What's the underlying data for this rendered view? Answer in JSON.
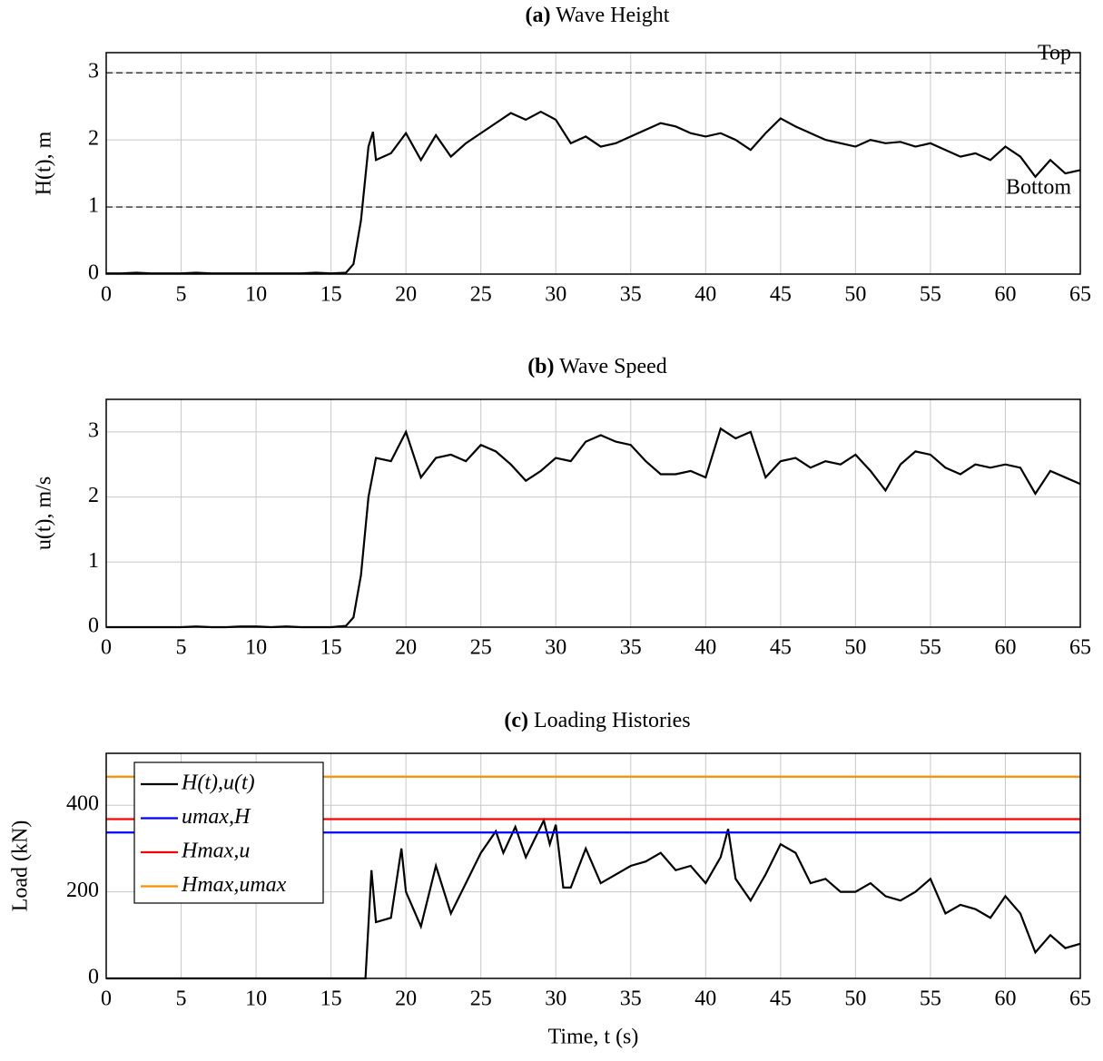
{
  "chart_data": [
    {
      "type": "line",
      "title_tag": "(a)",
      "title": "Wave Height",
      "y_label": "H(t), m",
      "xlim": [
        0,
        65
      ],
      "xticks": [
        0,
        5,
        10,
        15,
        20,
        25,
        30,
        35,
        40,
        45,
        50,
        55,
        60,
        65
      ],
      "ylim": [
        0,
        3.3
      ],
      "yticks": [
        0,
        1,
        2,
        3
      ],
      "grid": true,
      "annotations": [
        {
          "text": "Top",
          "y": 3
        },
        {
          "text": "Bottom",
          "y": 1
        }
      ],
      "series": [
        {
          "color": "#000000",
          "x": [
            0,
            1,
            2,
            3,
            4,
            5,
            6,
            7,
            8,
            9,
            10,
            11,
            12,
            13,
            14,
            15,
            16,
            16.5,
            17,
            17.5,
            17.8,
            18,
            19,
            20,
            21,
            22,
            23,
            24,
            25,
            26,
            27,
            28,
            29,
            30,
            31,
            32,
            33,
            34,
            35,
            36,
            37,
            38,
            39,
            40,
            41,
            42,
            43,
            44,
            45,
            46,
            47,
            48,
            49,
            50,
            51,
            52,
            53,
            54,
            55,
            56,
            57,
            58,
            59,
            60,
            61,
            62,
            63,
            64,
            65
          ],
          "values": [
            0.01,
            0.01,
            0.02,
            0.01,
            0.01,
            0.01,
            0.02,
            0.01,
            0.01,
            0.01,
            0.01,
            0.01,
            0.01,
            0.01,
            0.02,
            0.01,
            0.02,
            0.15,
            0.8,
            1.9,
            2.12,
            1.7,
            1.8,
            2.1,
            1.7,
            2.07,
            1.75,
            1.95,
            2.1,
            2.25,
            2.4,
            2.3,
            2.42,
            2.3,
            1.95,
            2.05,
            1.9,
            1.95,
            2.05,
            2.15,
            2.25,
            2.2,
            2.1,
            2.05,
            2.1,
            2.0,
            1.85,
            2.1,
            2.32,
            2.2,
            2.1,
            2.0,
            1.95,
            1.9,
            2.0,
            1.95,
            1.97,
            1.9,
            1.95,
            1.85,
            1.75,
            1.8,
            1.7,
            1.9,
            1.75,
            1.45,
            1.7,
            1.5,
            1.55
          ]
        }
      ]
    },
    {
      "type": "line",
      "title_tag": "(b)",
      "title": "Wave Speed",
      "y_label": "u(t), m/s",
      "xlim": [
        0,
        65
      ],
      "xticks": [
        0,
        5,
        10,
        15,
        20,
        25,
        30,
        35,
        40,
        45,
        50,
        55,
        60,
        65
      ],
      "ylim": [
        0,
        3.5
      ],
      "yticks": [
        0,
        1,
        2,
        3
      ],
      "grid": true,
      "series": [
        {
          "color": "#000000",
          "x": [
            0,
            1,
            2,
            3,
            4,
            5,
            6,
            7,
            8,
            9,
            10,
            11,
            12,
            13,
            14,
            15,
            16,
            16.5,
            17,
            17.5,
            18,
            19,
            20,
            21,
            22,
            23,
            24,
            25,
            26,
            27,
            28,
            29,
            30,
            31,
            32,
            33,
            34,
            35,
            36,
            37,
            38,
            39,
            40,
            41,
            42,
            43,
            44,
            45,
            46,
            47,
            48,
            49,
            50,
            51,
            52,
            53,
            54,
            55,
            56,
            57,
            58,
            59,
            60,
            61,
            62,
            63,
            64,
            65
          ],
          "values": [
            0,
            0,
            0,
            0,
            0,
            0,
            0.01,
            0,
            0,
            0.01,
            0.01,
            0,
            0.01,
            0,
            0,
            0,
            0.02,
            0.15,
            0.8,
            2.0,
            2.6,
            2.55,
            3.0,
            2.3,
            2.6,
            2.65,
            2.55,
            2.8,
            2.7,
            2.5,
            2.25,
            2.4,
            2.6,
            2.55,
            2.85,
            2.95,
            2.85,
            2.8,
            2.55,
            2.35,
            2.35,
            2.4,
            2.3,
            3.05,
            2.9,
            3.0,
            2.3,
            2.55,
            2.6,
            2.45,
            2.55,
            2.5,
            2.65,
            2.4,
            2.1,
            2.5,
            2.7,
            2.65,
            2.45,
            2.35,
            2.5,
            2.45,
            2.5,
            2.45,
            2.05,
            2.4,
            2.3,
            2.2
          ]
        }
      ]
    },
    {
      "type": "line",
      "title_tag": "(c)",
      "title": "Loading Histories",
      "y_label": "Load (kN)",
      "x_label": "Time, t (s)",
      "xlim": [
        0,
        65
      ],
      "xticks": [
        0,
        5,
        10,
        15,
        20,
        25,
        30,
        35,
        40,
        45,
        50,
        55,
        60,
        65
      ],
      "ylim": [
        0,
        520
      ],
      "yticks": [
        0,
        200,
        400
      ],
      "grid": true,
      "legend": "top-left",
      "series": [
        {
          "name": "H(t),u(t)",
          "color": "#000000",
          "x": [
            0,
            5,
            10,
            15,
            17,
            17.3,
            17.7,
            18,
            19,
            19.7,
            20,
            21,
            22,
            23,
            24,
            25,
            26,
            26.5,
            27.3,
            28,
            29.2,
            29.6,
            30,
            30.5,
            31,
            32,
            33,
            34,
            35,
            36,
            37,
            38,
            39,
            40,
            41,
            41.5,
            42,
            43,
            44,
            45,
            46,
            47,
            48,
            49,
            50,
            51,
            52,
            53,
            54,
            55,
            56,
            57,
            58,
            59,
            60,
            61,
            62,
            63,
            64,
            65
          ],
          "values": [
            0,
            0,
            0,
            0,
            0,
            0,
            250,
            130,
            140,
            300,
            200,
            120,
            260,
            150,
            220,
            290,
            340,
            290,
            350,
            280,
            365,
            310,
            355,
            210,
            210,
            300,
            220,
            240,
            260,
            270,
            290,
            250,
            260,
            220,
            280,
            345,
            230,
            180,
            240,
            310,
            290,
            220,
            230,
            200,
            200,
            220,
            190,
            180,
            200,
            230,
            150,
            170,
            160,
            140,
            190,
            150,
            60,
            100,
            70,
            80
          ]
        },
        {
          "name": "umax,H",
          "color": "#0000ff",
          "x": [
            0,
            65
          ],
          "values": [
            337,
            337
          ]
        },
        {
          "name": "Hmax,u",
          "color": "#ff0000",
          "x": [
            0,
            65
          ],
          "values": [
            368,
            368
          ]
        },
        {
          "name": "Hmax,umax",
          "color": "#ff8c00",
          "x": [
            0,
            65
          ],
          "values": [
            466,
            466
          ]
        }
      ]
    }
  ]
}
